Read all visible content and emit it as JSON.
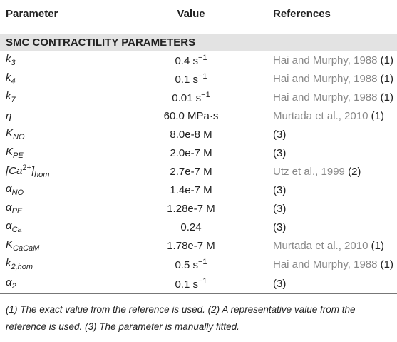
{
  "table": {
    "columns": [
      "Parameter",
      "Value",
      "References"
    ],
    "section": "SMC CONTRACTILITY PARAMETERS",
    "rows": [
      {
        "parameter": [
          {
            "text": "k",
            "style": "italic"
          },
          {
            "text": "3",
            "style": "sub"
          }
        ],
        "value": [
          {
            "text": "0.4 s"
          },
          {
            "text": "−1",
            "style": "sup"
          }
        ],
        "source": "Hai and Murphy, 1988",
        "note": "(1)"
      },
      {
        "parameter": [
          {
            "text": "k",
            "style": "italic"
          },
          {
            "text": "4",
            "style": "sub"
          }
        ],
        "value": [
          {
            "text": "0.1 s"
          },
          {
            "text": "−1",
            "style": "sup"
          }
        ],
        "source": "Hai and Murphy, 1988",
        "note": "(1)"
      },
      {
        "parameter": [
          {
            "text": "k",
            "style": "italic"
          },
          {
            "text": "7",
            "style": "sub"
          }
        ],
        "value": [
          {
            "text": "0.01 s"
          },
          {
            "text": "−1",
            "style": "sup"
          }
        ],
        "source": "Hai and Murphy, 1988",
        "note": "(1)"
      },
      {
        "parameter": [
          {
            "text": "η",
            "style": "italic"
          }
        ],
        "value": [
          {
            "text": "60.0 MPa·s"
          }
        ],
        "source": "Murtada et al., 2010",
        "note": "(1)"
      },
      {
        "parameter": [
          {
            "text": "K",
            "style": "italic"
          },
          {
            "text": "NO",
            "style": "sub"
          }
        ],
        "value": [
          {
            "text": "8.0e-8 M"
          }
        ],
        "note": "(3)"
      },
      {
        "parameter": [
          {
            "text": "K",
            "style": "italic"
          },
          {
            "text": "PE",
            "style": "sub"
          }
        ],
        "value": [
          {
            "text": "2.0e-7 M"
          }
        ],
        "note": "(3)"
      },
      {
        "parameter": [
          {
            "text": "[Ca",
            "style": "italic"
          },
          {
            "text": "2+",
            "style": "sup"
          },
          {
            "text": "]",
            "style": "italic"
          },
          {
            "text": "hom",
            "style": "sub"
          }
        ],
        "value": [
          {
            "text": "2.7e-7 M"
          }
        ],
        "source": "Utz et al., 1999",
        "note": "(2)"
      },
      {
        "parameter": [
          {
            "text": "α",
            "style": "italic"
          },
          {
            "text": "NO",
            "style": "sub"
          }
        ],
        "value": [
          {
            "text": "1.4e-7 M"
          }
        ],
        "note": "(3)"
      },
      {
        "parameter": [
          {
            "text": "α",
            "style": "italic"
          },
          {
            "text": "PE",
            "style": "sub"
          }
        ],
        "value": [
          {
            "text": "1.28e-7 M"
          }
        ],
        "note": "(3)"
      },
      {
        "parameter": [
          {
            "text": "α",
            "style": "italic"
          },
          {
            "text": "Ca",
            "style": "sub"
          }
        ],
        "value": [
          {
            "text": "0.24"
          }
        ],
        "note": "(3)"
      },
      {
        "parameter": [
          {
            "text": "K",
            "style": "italic"
          },
          {
            "text": "CaCaM",
            "style": "sub"
          }
        ],
        "value": [
          {
            "text": "1.78e-7 M"
          }
        ],
        "source": "Murtada et al., 2010",
        "note": "(1)"
      },
      {
        "parameter": [
          {
            "text": "k",
            "style": "italic"
          },
          {
            "text": "2,hom",
            "style": "sub"
          }
        ],
        "value": [
          {
            "text": "0.5 s"
          },
          {
            "text": "−1",
            "style": "sup"
          }
        ],
        "source": "Hai and Murphy, 1988",
        "note": "(1)"
      },
      {
        "parameter": [
          {
            "text": "α",
            "style": "italic"
          },
          {
            "text": "2",
            "style": "sub"
          }
        ],
        "value": [
          {
            "text": "0.1 s"
          },
          {
            "text": "−1",
            "style": "sup"
          }
        ],
        "note": "(3)"
      }
    ],
    "footnote": "(1) The exact value from the reference is used. (2) A representative value from the reference is used. (3) The parameter is manually fitted."
  }
}
